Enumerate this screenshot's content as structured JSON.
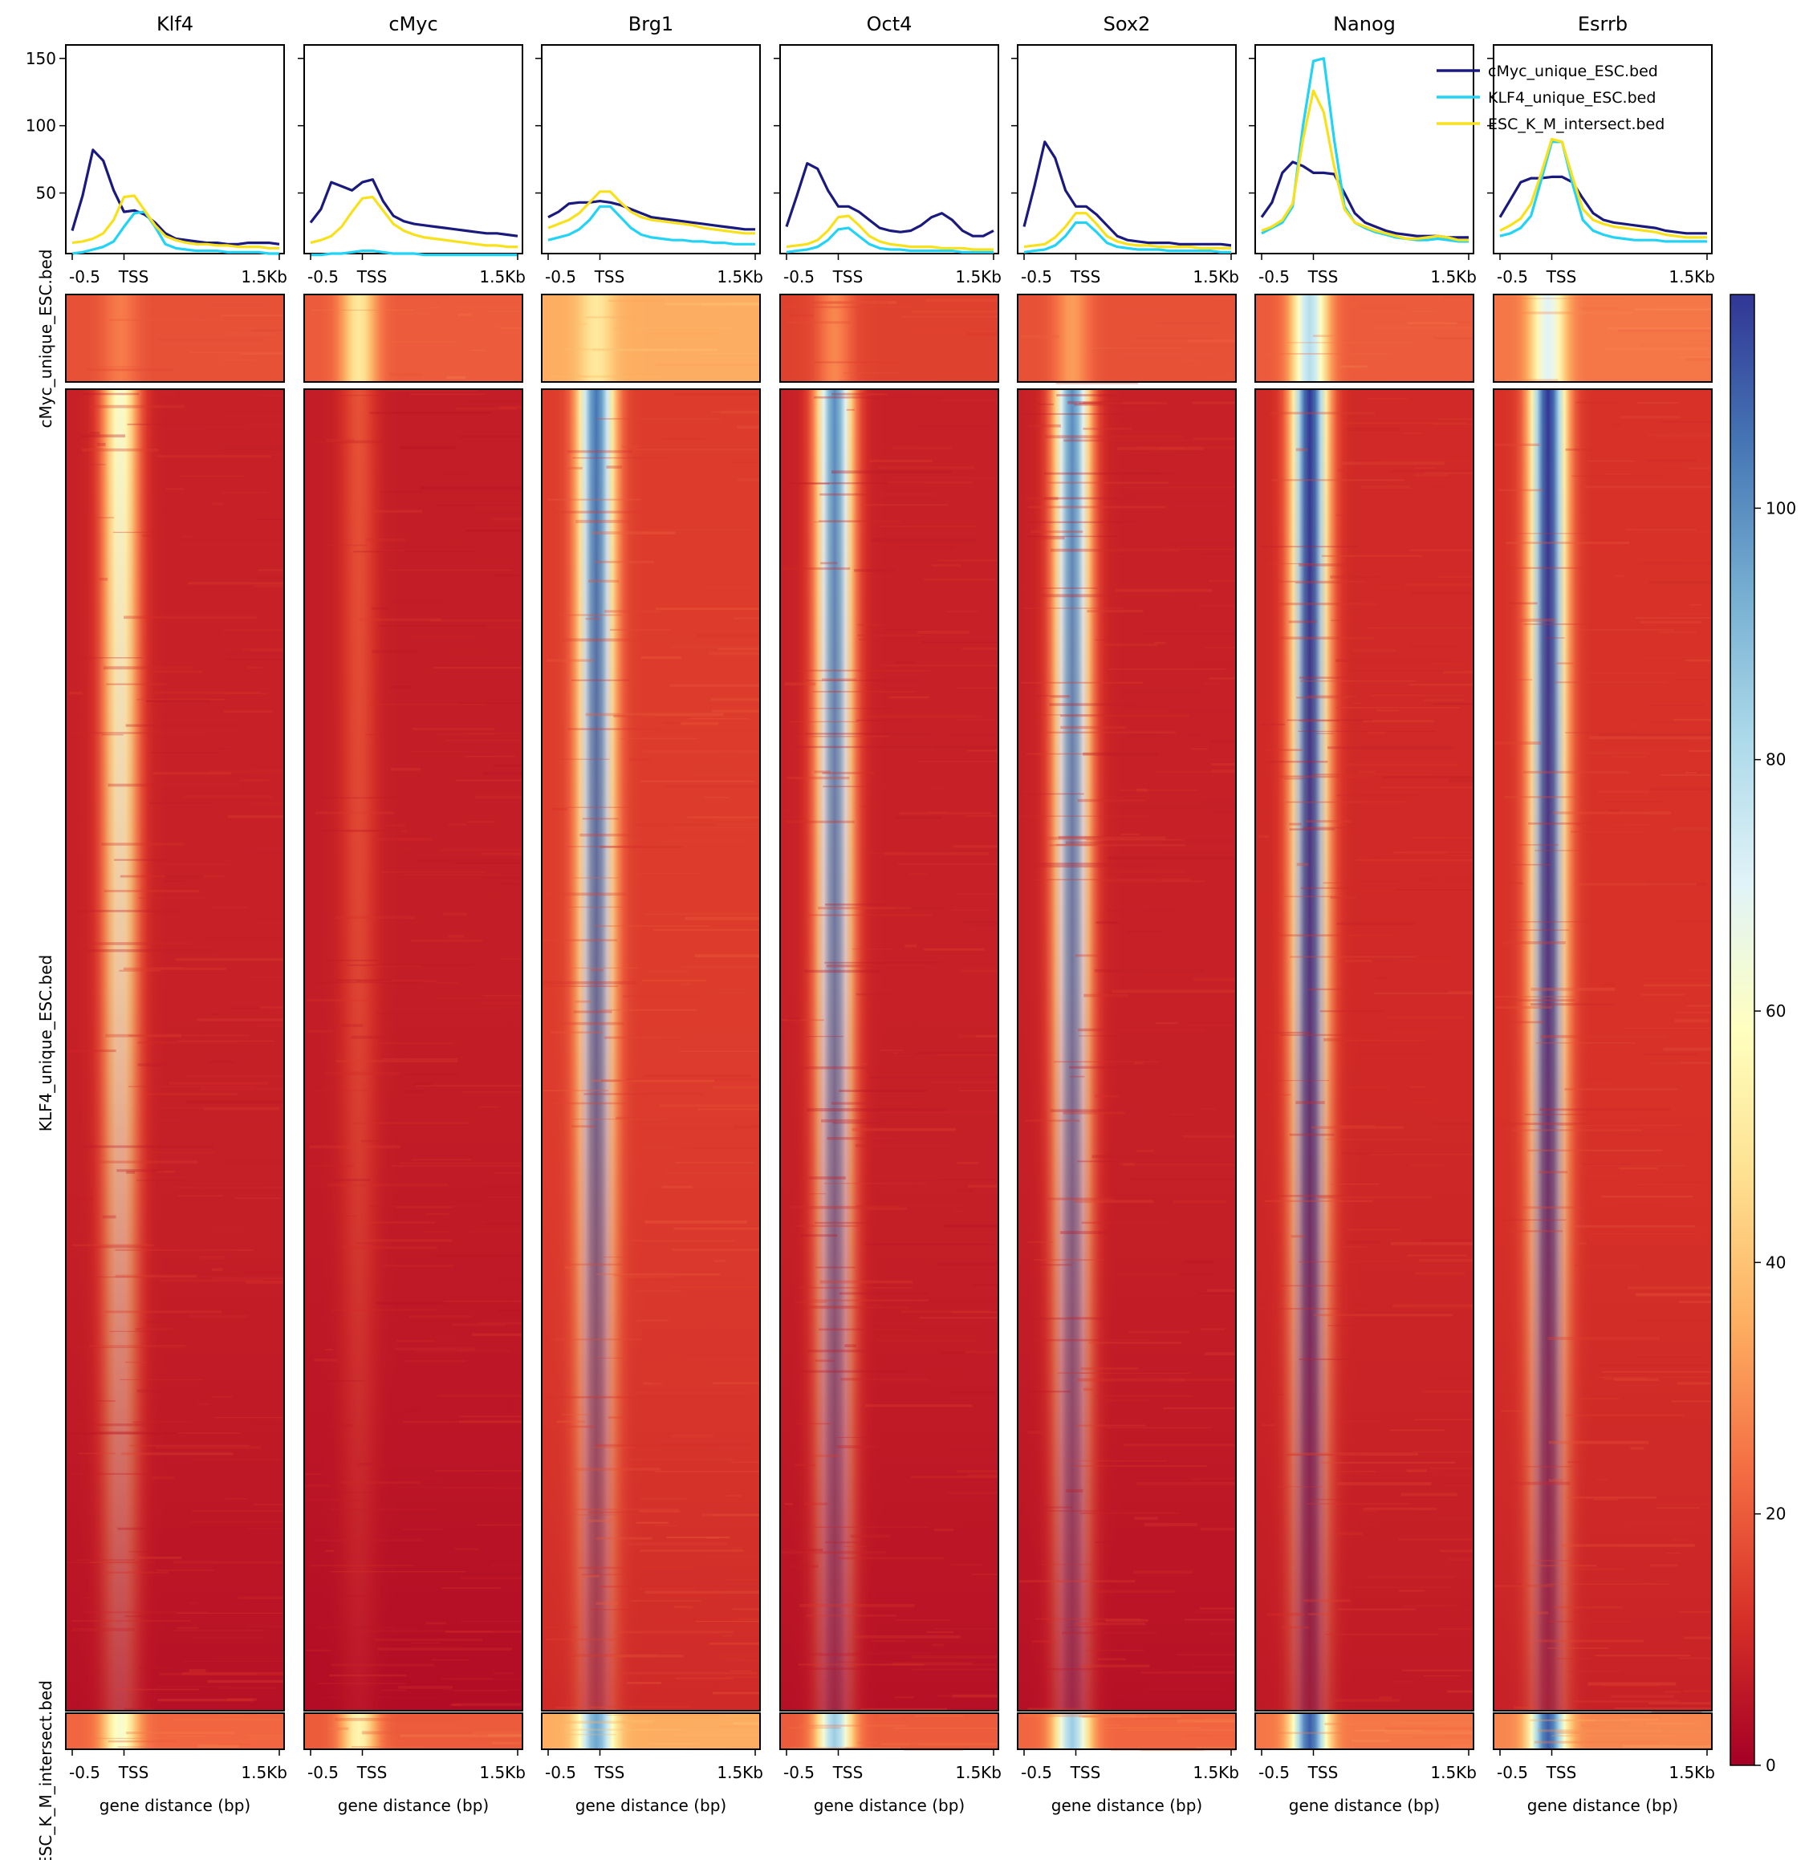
{
  "chart_data": {
    "type": "heatmap",
    "description_type": "profile line plots above grouped heatmaps",
    "columns": [
      "Klf4",
      "cMyc",
      "Brg1",
      "Oct4",
      "Sox2",
      "Nanog",
      "Esrrb"
    ],
    "groups": [
      "cMyc_unique_ESC.bed",
      "KLF4_unique_ESC.bed",
      "ESC_K_M_intersect.bed"
    ],
    "group_colors": [
      "#1a1a7e",
      "#22d3f5",
      "#f8e11b"
    ],
    "profile": {
      "ylim": [
        5,
        160
      ],
      "yticks": [
        50,
        100,
        150
      ],
      "x_tick_labels": [
        "-0.5",
        "TSS",
        "1.5Kb"
      ],
      "x_positions": [
        -0.5,
        -0.4,
        -0.3,
        -0.2,
        -0.1,
        0.0,
        0.1,
        0.2,
        0.3,
        0.4,
        0.5,
        0.6,
        0.7,
        0.8,
        0.9,
        1.0,
        1.1,
        1.2,
        1.3,
        1.4,
        1.5
      ],
      "legend_position": "top-right",
      "series": {
        "Klf4": [
          [
            22,
            48,
            82,
            74,
            52,
            36,
            37,
            34,
            28,
            20,
            16,
            15,
            14,
            13,
            13,
            12,
            12,
            13,
            13,
            13,
            12
          ],
          [
            5,
            6,
            8,
            10,
            14,
            25,
            35,
            36,
            25,
            12,
            9,
            8,
            7,
            7,
            7,
            6,
            6,
            6,
            6,
            5,
            5
          ],
          [
            13,
            14,
            16,
            20,
            30,
            47,
            48,
            37,
            26,
            18,
            15,
            13,
            12,
            12,
            11,
            11,
            10,
            10,
            10,
            9,
            9
          ]
        ],
        "cMyc": [
          [
            28,
            38,
            58,
            55,
            52,
            58,
            60,
            44,
            33,
            29,
            27,
            26,
            25,
            24,
            23,
            22,
            21,
            20,
            20,
            19,
            18
          ],
          [
            4,
            4,
            5,
            5,
            6,
            7,
            7,
            6,
            5,
            5,
            5,
            4,
            4,
            4,
            4,
            4,
            4,
            4,
            4,
            4,
            4
          ],
          [
            13,
            15,
            18,
            25,
            36,
            46,
            47,
            37,
            27,
            22,
            19,
            17,
            16,
            15,
            14,
            13,
            12,
            11,
            11,
            10,
            10
          ]
        ],
        "Brg1": [
          [
            32,
            36,
            42,
            43,
            43,
            44,
            43,
            41,
            38,
            35,
            32,
            31,
            30,
            29,
            28,
            27,
            26,
            25,
            24,
            23,
            23
          ],
          [
            15,
            17,
            19,
            23,
            30,
            40,
            40,
            32,
            24,
            19,
            17,
            16,
            15,
            15,
            14,
            14,
            13,
            13,
            12,
            12,
            12
          ],
          [
            24,
            27,
            30,
            35,
            43,
            51,
            51,
            43,
            36,
            32,
            30,
            29,
            28,
            27,
            26,
            24,
            23,
            22,
            21,
            20,
            20
          ]
        ],
        "Oct4": [
          [
            25,
            48,
            72,
            68,
            52,
            40,
            40,
            36,
            30,
            24,
            22,
            21,
            22,
            26,
            32,
            35,
            30,
            22,
            18,
            18,
            22
          ],
          [
            6,
            7,
            8,
            10,
            15,
            23,
            24,
            18,
            12,
            9,
            8,
            8,
            7,
            7,
            7,
            7,
            7,
            6,
            6,
            6,
            6
          ],
          [
            10,
            11,
            12,
            15,
            22,
            32,
            33,
            26,
            18,
            14,
            12,
            11,
            10,
            10,
            10,
            9,
            9,
            9,
            8,
            8,
            8
          ]
        ],
        "Sox2": [
          [
            25,
            55,
            88,
            76,
            52,
            40,
            40,
            34,
            26,
            18,
            15,
            14,
            13,
            13,
            13,
            12,
            12,
            12,
            12,
            12,
            11
          ],
          [
            6,
            7,
            8,
            11,
            18,
            28,
            28,
            21,
            13,
            10,
            9,
            8,
            8,
            8,
            7,
            7,
            7,
            7,
            7,
            6,
            6
          ],
          [
            10,
            11,
            12,
            17,
            25,
            35,
            35,
            27,
            18,
            14,
            12,
            11,
            11,
            10,
            10,
            10,
            10,
            9,
            9,
            9,
            9
          ]
        ],
        "Nanog": [
          [
            32,
            43,
            65,
            73,
            70,
            65,
            65,
            64,
            50,
            35,
            28,
            25,
            22,
            20,
            19,
            18,
            18,
            18,
            17,
            17,
            17
          ],
          [
            20,
            24,
            28,
            40,
            100,
            148,
            150,
            90,
            40,
            28,
            24,
            21,
            19,
            17,
            16,
            15,
            15,
            16,
            15,
            14,
            14
          ],
          [
            22,
            25,
            30,
            42,
            90,
            126,
            110,
            70,
            38,
            28,
            25,
            22,
            20,
            18,
            16,
            16,
            17,
            18,
            17,
            15,
            15
          ]
        ],
        "Esrrb": [
          [
            32,
            45,
            58,
            61,
            61,
            62,
            62,
            58,
            46,
            35,
            30,
            28,
            27,
            26,
            25,
            24,
            22,
            21,
            20,
            20,
            20
          ],
          [
            18,
            20,
            24,
            33,
            60,
            88,
            88,
            57,
            30,
            22,
            19,
            17,
            16,
            15,
            15,
            15,
            14,
            14,
            14,
            14,
            14
          ],
          [
            22,
            26,
            31,
            42,
            65,
            90,
            88,
            62,
            38,
            30,
            27,
            25,
            24,
            23,
            22,
            21,
            19,
            18,
            17,
            17,
            17
          ]
        ]
      }
    },
    "heatmap": {
      "x_tick_labels": [
        "-0.5",
        "TSS",
        "1.5Kb"
      ],
      "x_axis_label": "gene distance (bp)",
      "colormap": "RdYlBu",
      "colormap_stops": [
        "#a50026",
        "#d73027",
        "#f46d43",
        "#fdae61",
        "#fee090",
        "#ffffbf",
        "#e0f3f8",
        "#abd9e9",
        "#74add1",
        "#4575b4",
        "#313695"
      ],
      "color_range": [
        0,
        117
      ],
      "colorbar_ticks": [
        0,
        20,
        40,
        60,
        80,
        100
      ],
      "group_row_fraction": [
        0.06,
        0.898,
        0.042
      ],
      "peak_signal_by_group": {
        "Klf4": [
          26,
          62,
          62
        ],
        "cMyc": [
          50,
          18,
          55
        ],
        "Brg1": [
          50,
          105,
          95
        ],
        "Oct4": [
          28,
          100,
          85
        ],
        "Sox2": [
          32,
          100,
          85
        ],
        "Nanog": [
          80,
          117,
          110
        ],
        "Esrrb": [
          70,
          117,
          110
        ]
      },
      "background_signal_by_group": {
        "Klf4": [
          18,
          8,
          22
        ],
        "cMyc": [
          20,
          7,
          20
        ],
        "Brg1": [
          35,
          14,
          35
        ],
        "Oct4": [
          15,
          8,
          20
        ],
        "Sox2": [
          18,
          8,
          22
        ],
        "Nanog": [
          20,
          10,
          25
        ],
        "Esrrb": [
          25,
          12,
          28
        ]
      }
    }
  }
}
